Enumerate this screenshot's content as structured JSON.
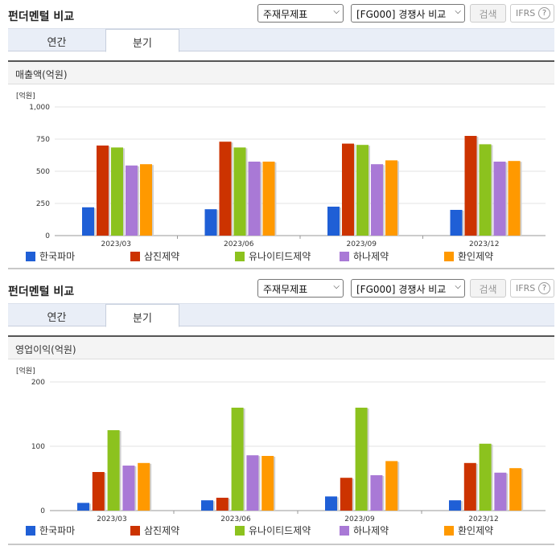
{
  "panel1": {
    "title": "펀더멘털 비교",
    "select1": "주재무제표",
    "select2": "[FG000] 경쟁사 비교",
    "search_label": "검색",
    "ifrs_label": "IFRS",
    "tabs": [
      {
        "label": "연간"
      },
      {
        "label": "분기"
      }
    ],
    "section_title": "매출액(억원)"
  },
  "panel2": {
    "title": "펀더멘털 비교",
    "select1": "주재무제표",
    "select2": "[FG000] 경쟁사 비교",
    "search_label": "검색",
    "ifrs_label": "IFRS",
    "tabs": [
      {
        "label": "연간"
      },
      {
        "label": "분기"
      }
    ],
    "section_title": "영업이익(억원)"
  },
  "colors": {
    "한국파마": "#1f5fd6",
    "삼진제약": "#cc3300",
    "유나이티드제약": "#8cc21e",
    "하나제약": "#a979d6",
    "환인제약": "#ff9900"
  },
  "chart_data": [
    {
      "type": "bar",
      "unit_label": "[억원]",
      "categories": [
        "2023/03",
        "2023/06",
        "2023/09",
        "2023/12"
      ],
      "ylim": [
        0,
        1000
      ],
      "yticks": [
        0,
        250,
        500,
        750,
        1000
      ],
      "ytick_labels": [
        "0",
        "250",
        "500",
        "750",
        "1,000"
      ],
      "grid": true,
      "legend": "bottom",
      "series": [
        {
          "name": "한국파마",
          "values": [
            220,
            205,
            225,
            200
          ]
        },
        {
          "name": "삼진제약",
          "values": [
            700,
            730,
            715,
            775
          ]
        },
        {
          "name": "유나이티드제약",
          "values": [
            685,
            685,
            705,
            710
          ]
        },
        {
          "name": "하나제약",
          "values": [
            545,
            575,
            555,
            575
          ]
        },
        {
          "name": "환인제약",
          "values": [
            555,
            575,
            585,
            580
          ]
        }
      ]
    },
    {
      "type": "bar",
      "unit_label": "[억원]",
      "categories": [
        "2023/03",
        "2023/06",
        "2023/09",
        "2023/12"
      ],
      "ylim": [
        0,
        200
      ],
      "yticks": [
        0,
        100,
        200
      ],
      "ytick_labels": [
        "0",
        "100",
        "200"
      ],
      "grid": true,
      "legend": "bottom",
      "series": [
        {
          "name": "한국파마",
          "values": [
            12,
            16,
            22,
            16
          ]
        },
        {
          "name": "삼진제약",
          "values": [
            60,
            20,
            51,
            74
          ]
        },
        {
          "name": "유나이티드제약",
          "values": [
            125,
            160,
            160,
            104
          ]
        },
        {
          "name": "하나제약",
          "values": [
            70,
            86,
            55,
            59
          ]
        },
        {
          "name": "환인제약",
          "values": [
            74,
            85,
            77,
            66
          ]
        }
      ]
    }
  ]
}
